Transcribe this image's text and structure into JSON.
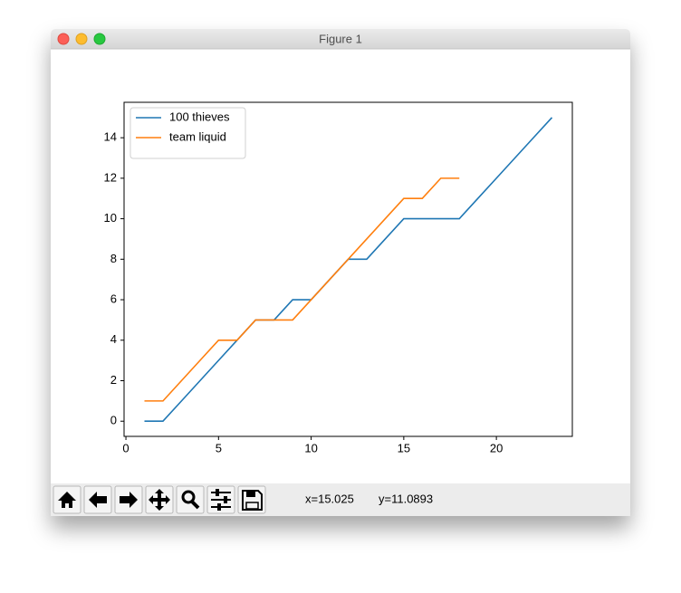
{
  "window": {
    "title": "Figure 1"
  },
  "chart_data": {
    "type": "line",
    "series": [
      {
        "name": "100 thieves",
        "color": "#1f77b4",
        "x": [
          1,
          2,
          3,
          4,
          5,
          6,
          7,
          8,
          9,
          10,
          11,
          12,
          13,
          14,
          15,
          16,
          17,
          18,
          19,
          20,
          21,
          22,
          23
        ],
        "values": [
          0,
          0,
          1,
          2,
          3,
          4,
          5,
          5,
          6,
          6,
          7,
          8,
          8,
          9,
          10,
          10,
          10,
          10,
          11,
          12,
          13,
          14,
          15
        ]
      },
      {
        "name": "team liquid",
        "color": "#ff7f0e",
        "x": [
          1,
          2,
          3,
          4,
          5,
          6,
          7,
          8,
          9,
          10,
          11,
          12,
          13,
          14,
          15,
          16,
          17,
          18
        ],
        "values": [
          1,
          1,
          2,
          3,
          4,
          4,
          5,
          5,
          5,
          6,
          7,
          8,
          9,
          10,
          11,
          11,
          12,
          12
        ]
      }
    ],
    "xlim": [
      -0.1,
      24.1
    ],
    "ylim": [
      -0.75,
      15.75
    ],
    "xticks": [
      0,
      5,
      10,
      15,
      20
    ],
    "yticks": [
      0,
      2,
      4,
      6,
      8,
      10,
      12,
      14
    ],
    "legend": "upper left"
  },
  "status": {
    "x_coord": "x=15.025",
    "y_coord": "y=11.0893"
  }
}
